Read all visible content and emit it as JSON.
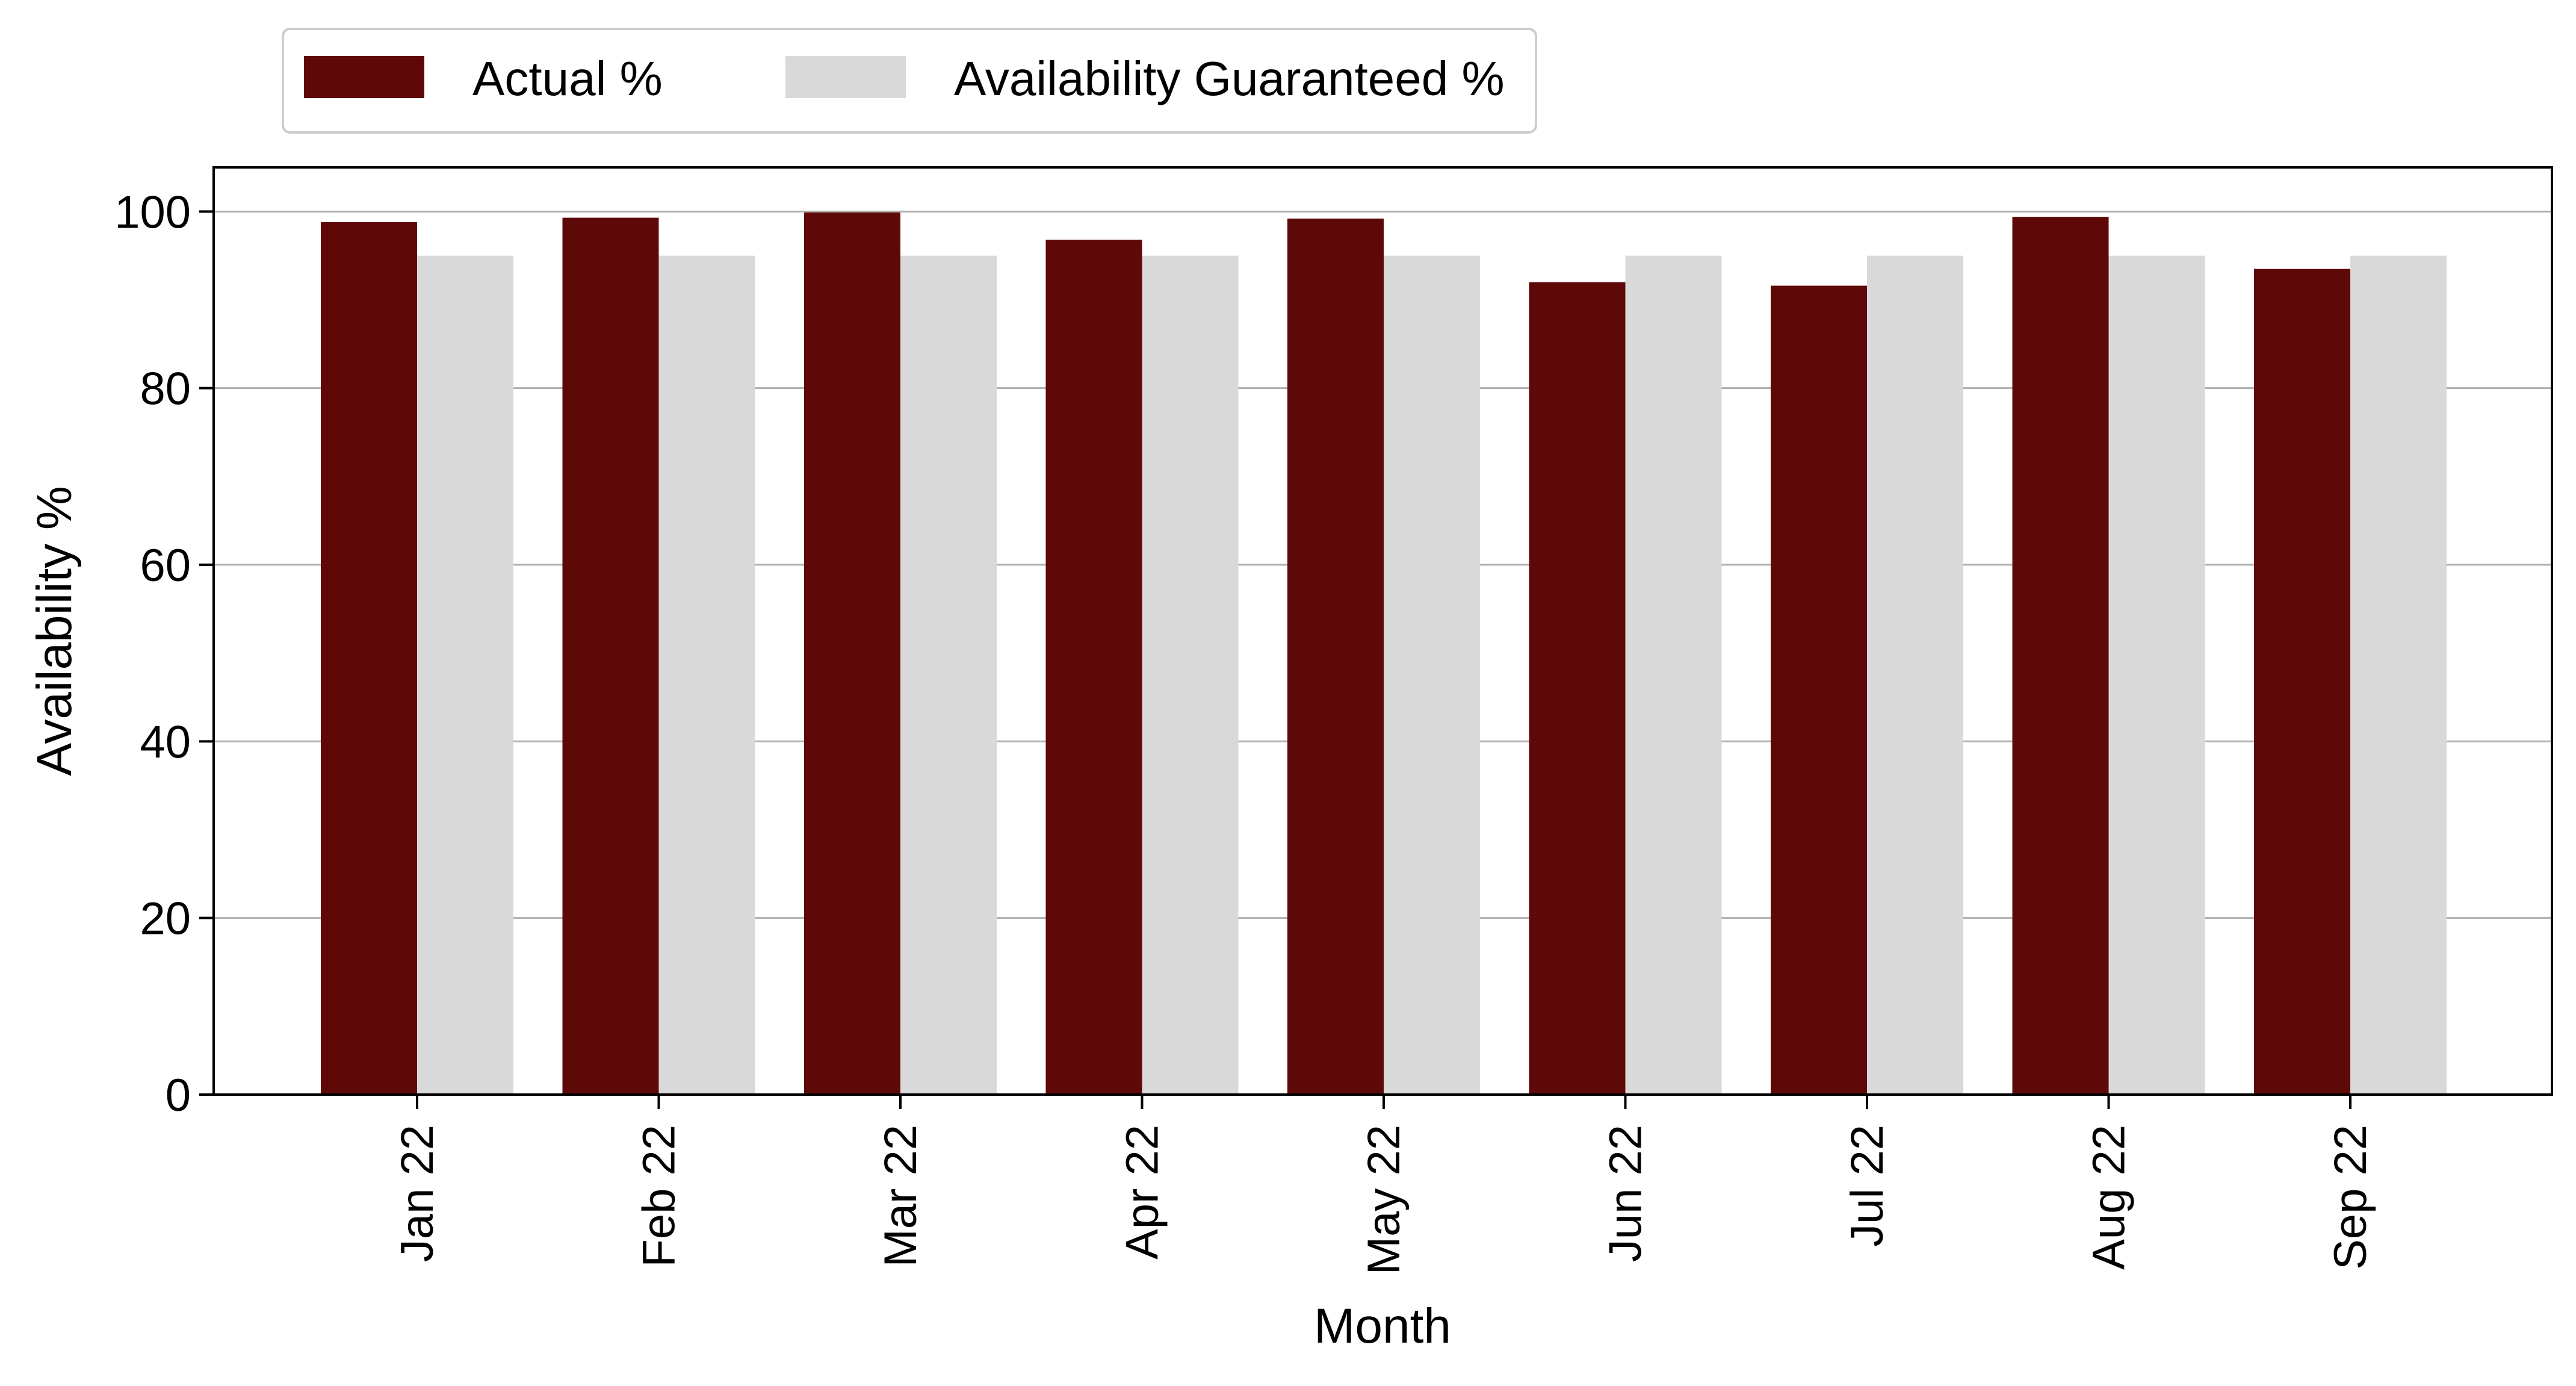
{
  "chart_data": {
    "type": "bar",
    "title": "",
    "xlabel": "Month",
    "ylabel": "Availability %",
    "categories": [
      "Jan 22",
      "Feb 22",
      "Mar 22",
      "Apr 22",
      "May 22",
      "Jun 22",
      "Jul 22",
      "Aug 22",
      "Sep 22"
    ],
    "series": [
      {
        "name": "Actual %",
        "color": "#5e0808",
        "values": [
          98.8,
          99.3,
          99.9,
          96.8,
          99.2,
          92.0,
          91.6,
          99.4,
          93.5
        ]
      },
      {
        "name": "Availability Guaranteed %",
        "color": "#d9d9d9",
        "values": [
          95,
          95,
          95,
          95,
          95,
          95,
          95,
          95,
          95
        ]
      }
    ],
    "ylim": [
      0,
      105
    ],
    "yticks": [
      0,
      20,
      40,
      60,
      80,
      100
    ],
    "grid": "horizontal",
    "legend_position": "top-left, above plot",
    "xtick_rotation": "vertical"
  }
}
